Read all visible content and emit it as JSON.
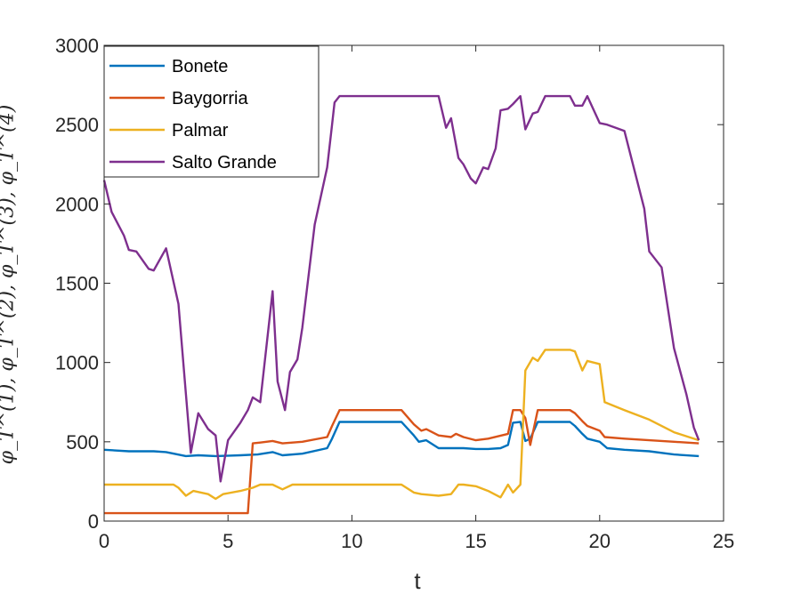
{
  "chart_data": {
    "type": "line",
    "xlabel": "t",
    "ylabel": "φ_T^(1), φ_T^(2), φ_T^(3), φ_T^(4)",
    "xlim": [
      0,
      25
    ],
    "ylim": [
      0,
      3000
    ],
    "xticks": [
      "0",
      "5",
      "10",
      "15",
      "20",
      "25"
    ],
    "yticks": [
      "0",
      "500",
      "1000",
      "1500",
      "2000",
      "2500",
      "3000"
    ],
    "legend_position": "top-left",
    "grid": false,
    "series": [
      {
        "name": "Bonete",
        "color": "#0072BD",
        "x": [
          0,
          1,
          2,
          2.5,
          3.3,
          3.8,
          4.5,
          5.5,
          6.2,
          6.8,
          7.2,
          8,
          9,
          9.2,
          9.5,
          12,
          12.5,
          12.7,
          13,
          13.5,
          14,
          14.5,
          15,
          15.5,
          16,
          16.3,
          16.5,
          16.8,
          17,
          17.2,
          17.5,
          18,
          18.8,
          19,
          19.3,
          19.5,
          20,
          20.3,
          21,
          22,
          23,
          24
        ],
        "y": [
          450,
          440,
          440,
          435,
          410,
          415,
          410,
          415,
          420,
          435,
          415,
          425,
          460,
          520,
          625,
          625,
          540,
          500,
          510,
          460,
          460,
          460,
          455,
          455,
          460,
          480,
          620,
          625,
          505,
          520,
          625,
          625,
          625,
          600,
          550,
          520,
          500,
          460,
          450,
          440,
          420,
          410
        ]
      },
      {
        "name": "Baygorria",
        "color": "#D95319",
        "x": [
          0,
          5.8,
          6,
          6.3,
          6.8,
          7.2,
          8,
          9,
          9.2,
          9.5,
          12,
          12.5,
          12.8,
          13,
          13.5,
          14,
          14.2,
          14.5,
          15,
          15.5,
          16.3,
          16.5,
          16.8,
          17,
          17.2,
          17.5,
          18.8,
          19,
          19.3,
          19.5,
          20,
          20.2,
          21,
          22,
          23,
          24
        ],
        "y": [
          50,
          50,
          490,
          495,
          505,
          490,
          500,
          530,
          600,
          700,
          700,
          610,
          570,
          580,
          540,
          530,
          550,
          530,
          510,
          520,
          550,
          700,
          700,
          650,
          480,
          700,
          700,
          680,
          630,
          600,
          570,
          530,
          520,
          510,
          500,
          490
        ]
      },
      {
        "name": "Palmar",
        "color": "#EDB120",
        "x": [
          0,
          2.8,
          3,
          3.3,
          3.6,
          4.2,
          4.5,
          4.8,
          5.5,
          6,
          6.3,
          6.8,
          7.2,
          7.6,
          8,
          12,
          12.5,
          12.8,
          13.5,
          14,
          14.3,
          14.5,
          15,
          15.5,
          16,
          16.3,
          16.5,
          16.8,
          17,
          17.3,
          17.5,
          17.8,
          18,
          18.8,
          19,
          19.3,
          19.5,
          20,
          20.2,
          21,
          22,
          23,
          24
        ],
        "y": [
          230,
          230,
          210,
          160,
          190,
          170,
          140,
          170,
          190,
          210,
          230,
          230,
          200,
          230,
          230,
          230,
          180,
          170,
          160,
          170,
          230,
          230,
          220,
          190,
          150,
          230,
          180,
          230,
          950,
          1030,
          1010,
          1080,
          1080,
          1080,
          1070,
          950,
          1010,
          990,
          750,
          700,
          640,
          560,
          510
        ]
      },
      {
        "name": "Salto Grande",
        "color": "#7E2F8E",
        "x": [
          0,
          0.3,
          0.8,
          1,
          1.3,
          1.8,
          2,
          2.5,
          3,
          3.3,
          3.5,
          3.8,
          4.2,
          4.5,
          4.7,
          5,
          5.5,
          5.8,
          6,
          6.3,
          6.8,
          7,
          7.3,
          7.5,
          7.8,
          8,
          8.5,
          9,
          9.2,
          9.3,
          9.5,
          13.5,
          13.8,
          14,
          14.3,
          14.5,
          14.8,
          15,
          15.3,
          15.5,
          15.8,
          16,
          16.3,
          16.5,
          16.8,
          17,
          17.3,
          17.5,
          17.8,
          18.8,
          19,
          19.3,
          19.5,
          20,
          20.3,
          21,
          21.8,
          22,
          22.5,
          23,
          23.5,
          23.8,
          24
        ],
        "y": [
          2150,
          1950,
          1800,
          1710,
          1700,
          1590,
          1580,
          1720,
          1370,
          800,
          430,
          680,
          580,
          540,
          250,
          510,
          620,
          700,
          780,
          750,
          1450,
          880,
          700,
          940,
          1020,
          1220,
          1870,
          2230,
          2500,
          2640,
          2680,
          2680,
          2480,
          2540,
          2290,
          2250,
          2160,
          2130,
          2230,
          2220,
          2350,
          2590,
          2600,
          2630,
          2680,
          2470,
          2570,
          2580,
          2680,
          2680,
          2620,
          2620,
          2680,
          2510,
          2500,
          2460,
          1970,
          1700,
          1600,
          1090,
          800,
          590,
          510
        ]
      }
    ]
  }
}
